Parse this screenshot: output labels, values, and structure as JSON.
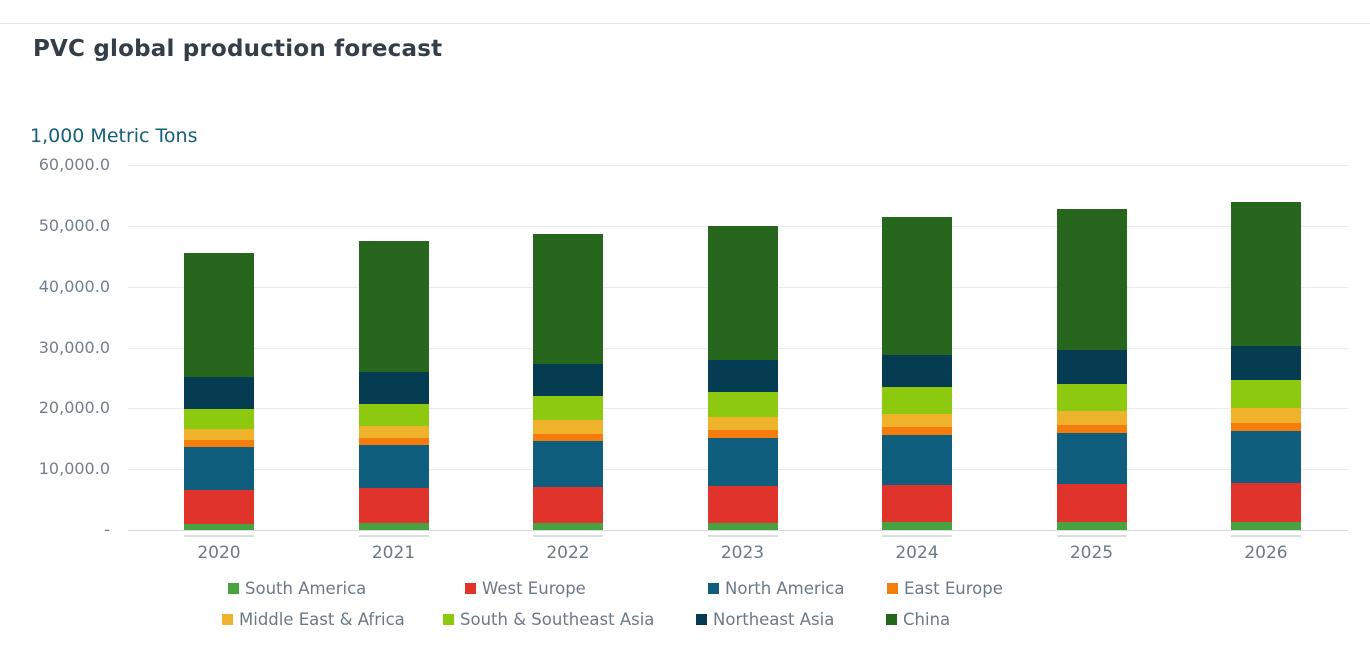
{
  "chart_data": {
    "type": "bar",
    "stacked": true,
    "title": "PVC global production forecast",
    "unit_label": "1,000 Metric Tons",
    "xlabel": "",
    "ylabel": "1,000 Metric Tons",
    "ylim": [
      0,
      60000
    ],
    "grid": true,
    "legend_position": "bottom",
    "categories": [
      "2020",
      "2021",
      "2022",
      "2023",
      "2024",
      "2025",
      "2026"
    ],
    "series": [
      {
        "name": "South America",
        "color": "#47a23f",
        "values": [
          1000,
          1150,
          1150,
          1200,
          1250,
          1300,
          1350
        ]
      },
      {
        "name": "West Europe",
        "color": "#e0332c",
        "values": [
          5500,
          5700,
          5900,
          6050,
          6150,
          6250,
          6350
        ]
      },
      {
        "name": "North America",
        "color": "#0f5e7d",
        "values": [
          7100,
          7100,
          7600,
          7900,
          8200,
          8400,
          8600
        ]
      },
      {
        "name": "East Europe",
        "color": "#f57d0d",
        "values": [
          1200,
          1250,
          1200,
          1250,
          1300,
          1300,
          1300
        ]
      },
      {
        "name": "Middle East & Africa",
        "color": "#efb32b",
        "values": [
          1850,
          1900,
          2300,
          2200,
          2250,
          2350,
          2450
        ]
      },
      {
        "name": "South & Southeast Asia",
        "color": "#8cc90f",
        "values": [
          3300,
          3600,
          3950,
          4100,
          4300,
          4450,
          4550
        ]
      },
      {
        "name": "Northeast Asia",
        "color": "#053c52",
        "values": [
          5200,
          5250,
          5150,
          5250,
          5300,
          5500,
          5700
        ]
      },
      {
        "name": "China",
        "color": "#27661d",
        "values": [
          20400,
          21600,
          21450,
          22100,
          22700,
          23200,
          23700
        ]
      }
    ],
    "totals": [
      45550,
      47550,
      48700,
      50050,
      51450,
      52750,
      54000
    ],
    "y_ticks": [
      {
        "label": "60,000.0",
        "value": 60000
      },
      {
        "label": "50,000.0",
        "value": 50000
      },
      {
        "label": "40,000.0",
        "value": 40000
      },
      {
        "label": "30,000.0",
        "value": 30000
      },
      {
        "label": "20,000.0",
        "value": 20000
      },
      {
        "label": "10,000.0",
        "value": 10000
      },
      {
        "label": "-",
        "value": 0
      }
    ],
    "legend_rows": [
      [
        "South America",
        "West Europe",
        "North America",
        "East Europe"
      ],
      [
        "Middle East & Africa",
        "South & Southeast Asia",
        "Northeast Asia",
        "China"
      ]
    ]
  },
  "colors": {
    "title_text": "#333e48",
    "unit_text": "#16607a",
    "axis_text": "#73808c",
    "gridline": "#e9ebed"
  }
}
